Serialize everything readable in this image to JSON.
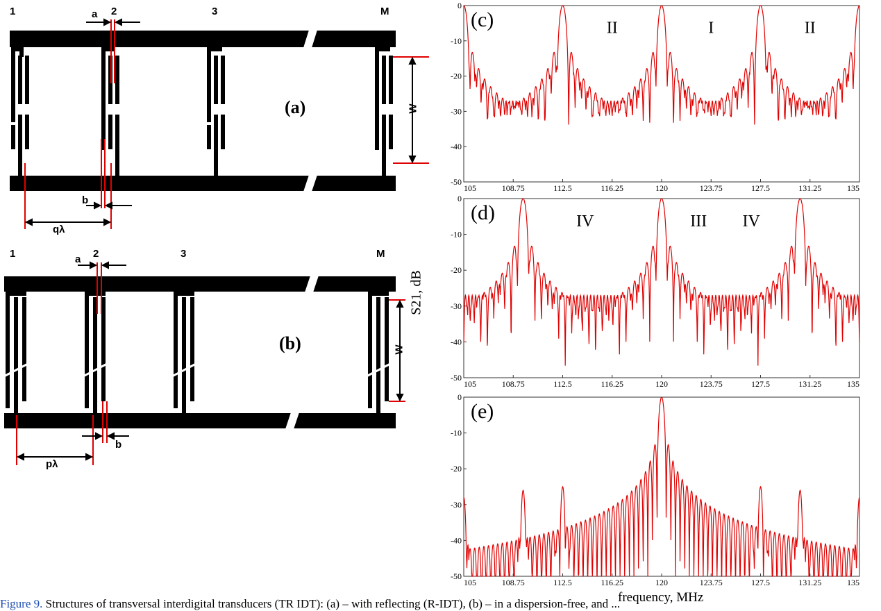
{
  "diagram_a": {
    "electrode_labels": [
      "1",
      "2",
      "3",
      "M"
    ],
    "dim_a": "a",
    "dim_b": "b",
    "period": "qλ",
    "aperture": "W",
    "panel": "(a)"
  },
  "diagram_b": {
    "electrode_labels": [
      "1",
      "2",
      "3",
      "M"
    ],
    "dim_a": "a",
    "dim_b": "b",
    "period": "pλ",
    "aperture": "W",
    "panel": "(b)"
  },
  "shared_ylabel": "S21, dB",
  "shared_xlabel": "frequency, MHz",
  "caption": {
    "figure_ref": "Figure 9.",
    "text": " Structures of transversal interdigital transducers (TR IDT): (a) – with reflecting (R-IDT), (b) – in a dispersion-free, and ..."
  },
  "chart_data": [
    {
      "type": "line",
      "panel": "(c)",
      "xlim": [
        105,
        135
      ],
      "ylim": [
        -50,
        0
      ],
      "x_ticks": [
        "105",
        "108.75",
        "112.5",
        "116.25",
        "120",
        "123.75",
        "127.5",
        "131.25",
        "135"
      ],
      "y_ticks": [
        "0",
        "-10",
        "-20",
        "-30",
        "-40",
        "-50"
      ],
      "series": [
        {
          "color": "#e00000",
          "main_peaks": [
            105,
            112.5,
            120,
            127.5,
            135
          ],
          "sidelobe_floor_db": -27
        }
      ],
      "region_labels": [
        {
          "text": "II",
          "x": 116.25,
          "y": -5
        },
        {
          "text": "I",
          "x": 123.75,
          "y": -5
        },
        {
          "text": "II",
          "x": 131.25,
          "y": -5
        }
      ]
    },
    {
      "type": "line",
      "panel": "(d)",
      "xlim": [
        105,
        135
      ],
      "ylim": [
        -50,
        0
      ],
      "x_ticks": [
        "105",
        "108.75",
        "112.5",
        "116.25",
        "120",
        "123.75",
        "127.5",
        "131.25",
        "135"
      ],
      "y_ticks": [
        "0",
        "-10",
        "-20",
        "-30",
        "-40",
        "-50"
      ],
      "series": [
        {
          "color": "#e00000",
          "main_peaks": [
            109.5,
            120,
            130.5
          ],
          "sidelobe_floor_db": -27
        }
      ],
      "region_labels": [
        {
          "text": "IV",
          "x": 114.2,
          "y": -5
        },
        {
          "text": "III",
          "x": 122.8,
          "y": -5
        },
        {
          "text": "IV",
          "x": 126.8,
          "y": -5
        }
      ]
    },
    {
      "type": "line",
      "panel": "(e)",
      "xlim": [
        105,
        135
      ],
      "ylim": [
        -50,
        0
      ],
      "x_ticks": [
        "105",
        "108.75",
        "112.5",
        "116.25",
        "120",
        "123.75",
        "127.5",
        "131.25",
        "135"
      ],
      "y_ticks": [
        "0",
        "-10",
        "-20",
        "-30",
        "-40",
        "-50"
      ],
      "series": [
        {
          "color": "#e00000",
          "peaks": [
            {
              "x": 105,
              "db": -28
            },
            {
              "x": 109.5,
              "db": -26
            },
            {
              "x": 112.5,
              "db": -25
            },
            {
              "x": 120,
              "db": 0
            },
            {
              "x": 127.5,
              "db": -25
            },
            {
              "x": 130.5,
              "db": -26
            },
            {
              "x": 135,
              "db": -28
            }
          ]
        }
      ],
      "region_labels": []
    }
  ]
}
